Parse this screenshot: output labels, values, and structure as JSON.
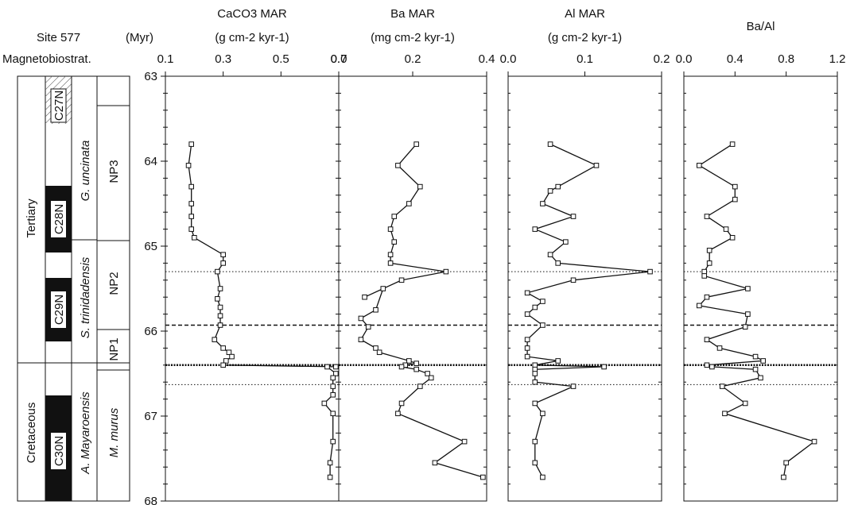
{
  "header": {
    "site": "Site 577",
    "age_unit": "(Myr)",
    "magneto": "Magnetobiostrat."
  },
  "strat": {
    "periods": [
      "Tertiary",
      "Cretaceous"
    ],
    "chrons": [
      "C27N",
      "C28N",
      "C29N",
      "C30N"
    ],
    "forams": [
      "G. uncinata",
      "S. trinidadensis",
      "A. Mayaroensis"
    ],
    "nanno": [
      "NP3",
      "NP2",
      "NP1",
      "M. murus"
    ]
  },
  "chart_data": {
    "type": "line",
    "y_axis": {
      "label": "(Myr)",
      "ticks": [
        63,
        64,
        65,
        66,
        67,
        68
      ],
      "range": [
        63,
        68
      ],
      "inverted": true
    },
    "reference_lines": [
      {
        "age": 65.3,
        "style": "dotted"
      },
      {
        "age": 65.93,
        "style": "dashed"
      },
      {
        "age": 66.4,
        "style": "dotted-bold"
      },
      {
        "age": 66.63,
        "style": "dotted"
      }
    ],
    "ages": [
      63.8,
      64.05,
      64.3,
      64.5,
      64.65,
      64.8,
      64.95,
      65.13,
      65.3,
      65.45,
      65.6,
      65.72,
      65.8,
      65.93,
      66.1,
      66.2,
      66.3,
      66.35,
      66.38,
      66.41,
      66.45,
      66.5,
      66.55,
      66.65,
      66.85,
      66.97,
      67.3,
      67.55,
      67.72
    ],
    "panels": [
      {
        "title_main": "CaCO3 MAR",
        "title_unit": "(g cm-2 kyr-1)",
        "xlim": [
          0.1,
          0.7
        ],
        "xticks": [
          "0.1",
          "0.3",
          "0.5",
          "0.7"
        ],
        "xtick_values": [
          0.1,
          0.3,
          0.5,
          0.7
        ],
        "points": [
          [
            0.19,
            63.8
          ],
          [
            0.18,
            64.05
          ],
          [
            0.19,
            64.3
          ],
          [
            0.19,
            64.5
          ],
          [
            0.19,
            64.65
          ],
          [
            0.19,
            64.8
          ],
          [
            0.2,
            64.9
          ],
          [
            0.3,
            65.1
          ],
          [
            0.3,
            65.2
          ],
          [
            0.28,
            65.3
          ],
          [
            0.29,
            65.5
          ],
          [
            0.28,
            65.62
          ],
          [
            0.29,
            65.72
          ],
          [
            0.29,
            65.82
          ],
          [
            0.29,
            65.93
          ],
          [
            0.27,
            66.1
          ],
          [
            0.3,
            66.2
          ],
          [
            0.32,
            66.25
          ],
          [
            0.33,
            66.3
          ],
          [
            0.31,
            66.35
          ],
          [
            0.3,
            66.4
          ],
          [
            0.69,
            66.42
          ],
          [
            0.66,
            66.42
          ],
          [
            0.69,
            66.5
          ],
          [
            0.68,
            66.55
          ],
          [
            0.68,
            66.65
          ],
          [
            0.68,
            66.75
          ],
          [
            0.65,
            66.85
          ],
          [
            0.68,
            66.97
          ],
          [
            0.68,
            67.3
          ],
          [
            0.67,
            67.55
          ],
          [
            0.67,
            67.72
          ]
        ]
      },
      {
        "title_main": "Ba MAR",
        "title_unit": "(mg cm-2 kyr-1)",
        "xlim": [
          0.0,
          0.4
        ],
        "xticks": [
          "0.0",
          "0.2",
          "0.4"
        ],
        "xtick_values": [
          0.0,
          0.2,
          0.4
        ],
        "points": [
          [
            0.21,
            63.8
          ],
          [
            0.16,
            64.05
          ],
          [
            0.22,
            64.3
          ],
          [
            0.19,
            64.5
          ],
          [
            0.15,
            64.65
          ],
          [
            0.14,
            64.8
          ],
          [
            0.15,
            64.95
          ],
          [
            0.14,
            65.1
          ],
          [
            0.14,
            65.2
          ],
          [
            0.29,
            65.3
          ],
          [
            0.17,
            65.4
          ],
          [
            0.07,
            65.6
          ],
          [
            0.12,
            65.5
          ],
          [
            0.1,
            65.75
          ],
          [
            0.06,
            65.85
          ],
          [
            0.08,
            65.95
          ],
          [
            0.06,
            66.1
          ],
          [
            0.1,
            66.2
          ],
          [
            0.11,
            66.25
          ],
          [
            0.19,
            66.35
          ],
          [
            0.21,
            66.38
          ],
          [
            0.18,
            66.4
          ],
          [
            0.17,
            66.42
          ],
          [
            0.21,
            66.45
          ],
          [
            0.24,
            66.5
          ],
          [
            0.25,
            66.55
          ],
          [
            0.22,
            66.65
          ],
          [
            0.17,
            66.85
          ],
          [
            0.16,
            66.97
          ],
          [
            0.34,
            67.3
          ],
          [
            0.26,
            67.55
          ],
          [
            0.39,
            67.72
          ]
        ]
      },
      {
        "title_main": "Al MAR",
        "title_unit": "(g cm-2 kyr-1)",
        "xlim": [
          0.0,
          0.2
        ],
        "xticks": [
          "0.0",
          "0.1",
          "0.2"
        ],
        "xtick_values": [
          0.0,
          0.1,
          0.2
        ],
        "points": [
          [
            0.055,
            63.8
          ],
          [
            0.115,
            64.05
          ],
          [
            0.065,
            64.3
          ],
          [
            0.055,
            64.35
          ],
          [
            0.045,
            64.5
          ],
          [
            0.085,
            64.65
          ],
          [
            0.035,
            64.8
          ],
          [
            0.075,
            64.95
          ],
          [
            0.055,
            65.1
          ],
          [
            0.065,
            65.2
          ],
          [
            0.185,
            65.3
          ],
          [
            0.085,
            65.4
          ],
          [
            0.025,
            65.55
          ],
          [
            0.045,
            65.65
          ],
          [
            0.035,
            65.72
          ],
          [
            0.025,
            65.8
          ],
          [
            0.045,
            65.93
          ],
          [
            0.025,
            66.1
          ],
          [
            0.025,
            66.2
          ],
          [
            0.025,
            66.3
          ],
          [
            0.065,
            66.35
          ],
          [
            0.035,
            66.4
          ],
          [
            0.125,
            66.42
          ],
          [
            0.035,
            66.45
          ],
          [
            0.035,
            66.5
          ],
          [
            0.035,
            66.6
          ],
          [
            0.085,
            66.65
          ],
          [
            0.035,
            66.85
          ],
          [
            0.045,
            66.97
          ],
          [
            0.035,
            67.3
          ],
          [
            0.035,
            67.55
          ],
          [
            0.045,
            67.72
          ]
        ]
      },
      {
        "title_main": "Ba/Al",
        "title_unit": "",
        "xlim": [
          0.0,
          1.2
        ],
        "xticks": [
          "0.0",
          "0.4",
          "0.8",
          "1.2"
        ],
        "xtick_values": [
          0.0,
          0.4,
          0.8,
          1.2
        ],
        "points": [
          [
            0.38,
            63.8
          ],
          [
            0.12,
            64.05
          ],
          [
            0.4,
            64.3
          ],
          [
            0.4,
            64.45
          ],
          [
            0.18,
            64.65
          ],
          [
            0.33,
            64.8
          ],
          [
            0.38,
            64.9
          ],
          [
            0.2,
            65.05
          ],
          [
            0.2,
            65.2
          ],
          [
            0.16,
            65.3
          ],
          [
            0.16,
            65.35
          ],
          [
            0.5,
            65.5
          ],
          [
            0.18,
            65.6
          ],
          [
            0.12,
            65.7
          ],
          [
            0.5,
            65.8
          ],
          [
            0.48,
            65.95
          ],
          [
            0.18,
            66.1
          ],
          [
            0.28,
            66.2
          ],
          [
            0.56,
            66.3
          ],
          [
            0.62,
            66.35
          ],
          [
            0.18,
            66.4
          ],
          [
            0.22,
            66.42
          ],
          [
            0.56,
            66.45
          ],
          [
            0.6,
            66.55
          ],
          [
            0.3,
            66.65
          ],
          [
            0.48,
            66.85
          ],
          [
            0.32,
            66.97
          ],
          [
            1.02,
            67.3
          ],
          [
            0.8,
            67.55
          ],
          [
            0.78,
            67.72
          ]
        ]
      }
    ]
  }
}
